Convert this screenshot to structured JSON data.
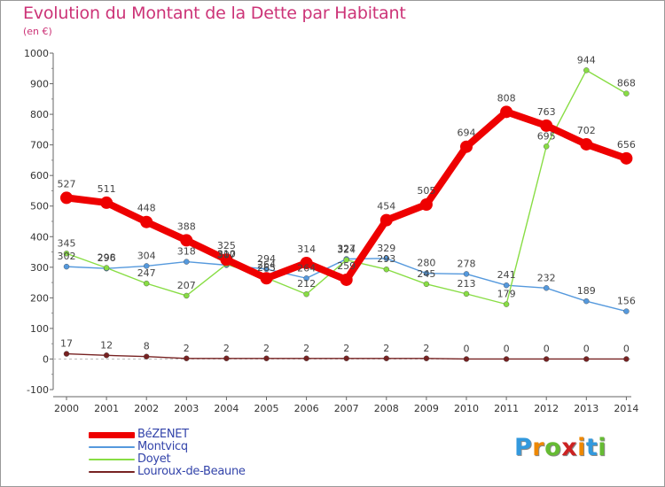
{
  "title": "Evolution du Montant de la Dette par Habitant",
  "unit": "(en €)",
  "logo": "Proxiti",
  "chart_data": {
    "type": "line",
    "categories": [
      "2000",
      "2001",
      "2002",
      "2003",
      "2004",
      "2005",
      "2006",
      "2007",
      "2008",
      "2009",
      "2010",
      "2011",
      "2012",
      "2013",
      "2014"
    ],
    "ylim": [
      -100,
      1000
    ],
    "yticks": [
      -100,
      0,
      100,
      200,
      300,
      400,
      500,
      600,
      700,
      800,
      900,
      1000
    ],
    "grid": false,
    "legend_position": "bottom-left",
    "series": [
      {
        "name": "BéZENET",
        "color": "#ee0000",
        "width": 8,
        "marker": 7,
        "values": [
          527,
          511,
          448,
          388,
          325,
          264,
          314,
          259,
          454,
          505,
          694,
          808,
          763,
          702,
          656
        ]
      },
      {
        "name": "Montvicq",
        "color": "#5599dd",
        "width": 1.4,
        "marker": 3,
        "values": [
          302,
          296,
          304,
          318,
          307,
          294,
          264,
          327,
          329,
          280,
          278,
          241,
          232,
          189,
          156
        ]
      },
      {
        "name": "Doyet",
        "color": "#88dd44",
        "width": 1.4,
        "marker": 3,
        "values": [
          345,
          298,
          247,
          207,
          310,
          265,
          212,
          324,
          293,
          245,
          213,
          179,
          695,
          944,
          868
        ]
      },
      {
        "name": "Louroux-de-Beaune",
        "color": "#772222",
        "width": 1.4,
        "marker": 3,
        "values": [
          17,
          12,
          8,
          2,
          2,
          2,
          2,
          2,
          2,
          2,
          0,
          0,
          0,
          0,
          0
        ]
      }
    ],
    "data_labels": {
      "BéZENET": [
        "527",
        "511",
        "448",
        "388",
        "325",
        "264",
        "314",
        "259",
        "454",
        "505",
        "694",
        "808",
        "763",
        "702",
        "656"
      ],
      "Montvicq": [
        "302",
        "296",
        "304",
        "318",
        "307",
        "294",
        "264",
        "327",
        "329",
        "280",
        "278",
        "241",
        "232",
        "189",
        "156"
      ],
      "Doyet": [
        "345",
        "298",
        "247",
        "207",
        "310",
        "265",
        "212",
        "324",
        "293",
        "245",
        "213",
        "179",
        "695",
        "944",
        "868"
      ],
      "Louroux-de-Beaune": [
        "17",
        "12",
        "8",
        "2",
        "2",
        "2",
        "2",
        "2",
        "2",
        "2",
        "0",
        "0",
        "0",
        "0",
        "0"
      ]
    }
  }
}
